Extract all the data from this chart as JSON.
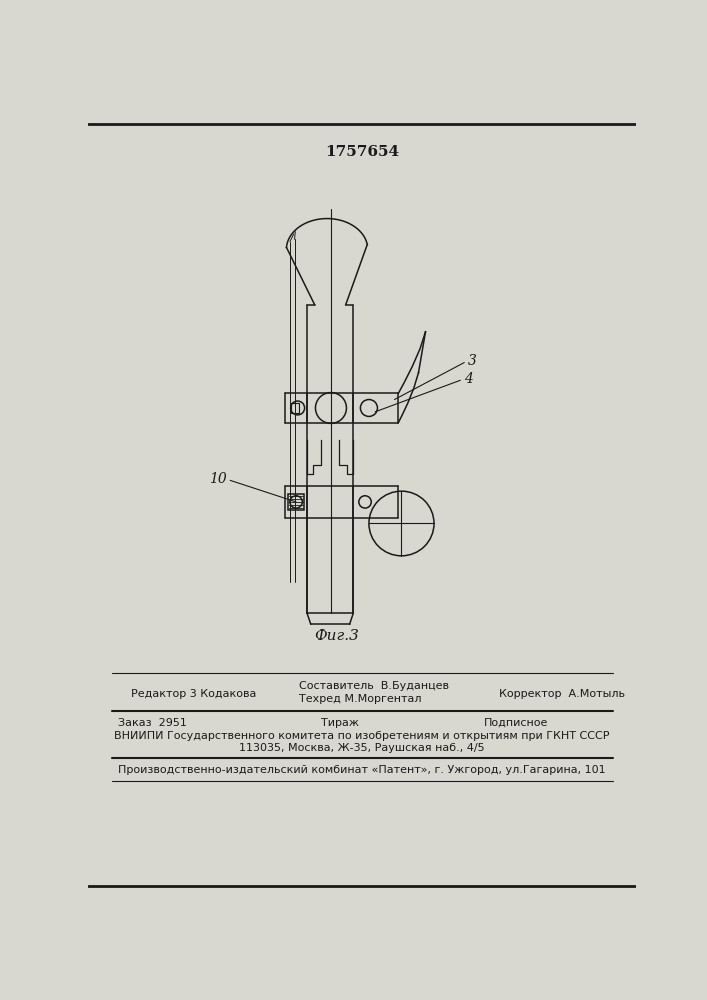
{
  "patent_number": "1757654",
  "fig_label": "Фиг.3",
  "label_3": "3",
  "label_4": "4",
  "label_10": "10",
  "footer_line1_left": "Редактор 3 Кодакова",
  "footer_line1_mid1": "Составитель  В.Буданцев",
  "footer_line1_mid2": "Техред М.Моргентал",
  "footer_line1_right": "Корректор  А.Мотыль",
  "footer_line2_left": "Заказ  2951",
  "footer_line2_mid": "Тираж",
  "footer_line2_right": "Подписное",
  "footer_line3": "ВНИИПИ Государственного комитета по изобретениям и открытиям при ГКНТ СССР",
  "footer_line4": "113035, Москва, Ж-35, Раушская наб., 4/5",
  "footer_line5": "Производственно-издательский комбинат «Патент», г. Ужгород, ул.Гагарина, 101",
  "bg_color": "#d8d8d0",
  "line_color": "#1a1a1a"
}
